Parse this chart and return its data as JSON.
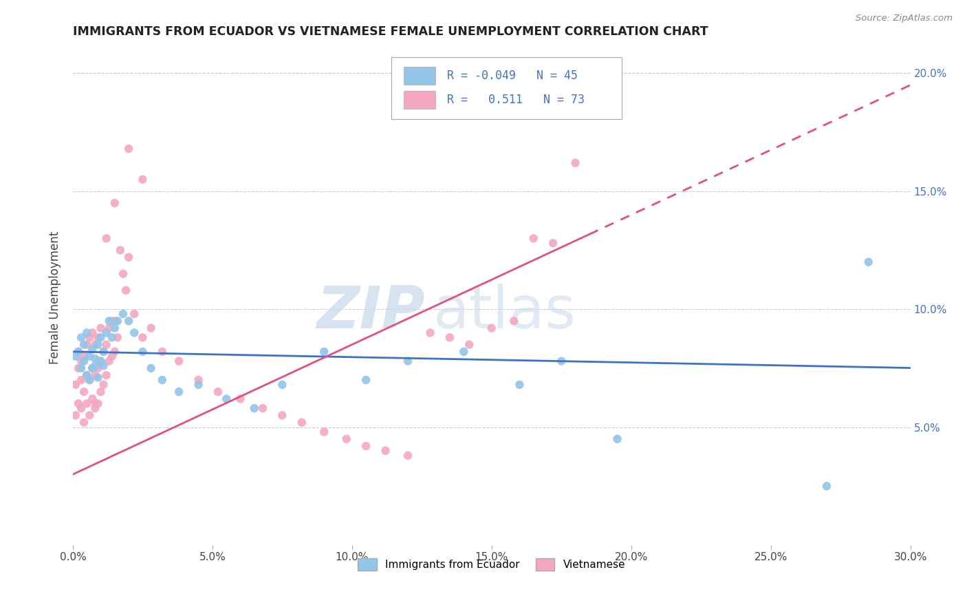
{
  "title": "IMMIGRANTS FROM ECUADOR VS VIETNAMESE FEMALE UNEMPLOYMENT CORRELATION CHART",
  "source": "Source: ZipAtlas.com",
  "ylabel": "Female Unemployment",
  "xlim": [
    0.0,
    0.3
  ],
  "ylim": [
    0.0,
    0.21
  ],
  "xticks": [
    0.0,
    0.05,
    0.1,
    0.15,
    0.2,
    0.25,
    0.3
  ],
  "xtick_labels": [
    "0.0%",
    "5.0%",
    "10.0%",
    "15.0%",
    "20.0%",
    "25.0%",
    "30.0%"
  ],
  "yticks_right": [
    0.05,
    0.1,
    0.15,
    0.2
  ],
  "ytick_labels_right": [
    "5.0%",
    "10.0%",
    "15.0%",
    "20.0%"
  ],
  "blue_color": "#93c5e8",
  "pink_color": "#f4a8bf",
  "blue_line_color": "#3d74c7",
  "pink_line_color": "#e05080",
  "watermark_zip": "ZIP",
  "watermark_atlas": "atlas",
  "background_color": "#ffffff",
  "grid_color": "#cccccc",
  "blue_scatter_x": [
    0.001,
    0.002,
    0.003,
    0.003,
    0.004,
    0.004,
    0.005,
    0.005,
    0.006,
    0.006,
    0.007,
    0.007,
    0.008,
    0.008,
    0.009,
    0.009,
    0.01,
    0.01,
    0.011,
    0.011,
    0.012,
    0.013,
    0.014,
    0.015,
    0.016,
    0.018,
    0.02,
    0.022,
    0.025,
    0.028,
    0.032,
    0.038,
    0.045,
    0.055,
    0.065,
    0.075,
    0.09,
    0.105,
    0.12,
    0.14,
    0.16,
    0.175,
    0.195,
    0.27,
    0.285
  ],
  "blue_scatter_y": [
    0.08,
    0.082,
    0.075,
    0.088,
    0.078,
    0.085,
    0.072,
    0.09,
    0.07,
    0.08,
    0.075,
    0.083,
    0.076,
    0.079,
    0.071,
    0.085,
    0.078,
    0.088,
    0.082,
    0.076,
    0.09,
    0.095,
    0.088,
    0.092,
    0.095,
    0.098,
    0.095,
    0.09,
    0.082,
    0.075,
    0.07,
    0.065,
    0.068,
    0.062,
    0.058,
    0.068,
    0.082,
    0.07,
    0.078,
    0.082,
    0.068,
    0.078,
    0.045,
    0.025,
    0.12
  ],
  "pink_scatter_x": [
    0.001,
    0.001,
    0.002,
    0.002,
    0.002,
    0.003,
    0.003,
    0.003,
    0.004,
    0.004,
    0.004,
    0.005,
    0.005,
    0.005,
    0.006,
    0.006,
    0.006,
    0.007,
    0.007,
    0.007,
    0.008,
    0.008,
    0.008,
    0.009,
    0.009,
    0.009,
    0.01,
    0.01,
    0.01,
    0.011,
    0.011,
    0.012,
    0.012,
    0.013,
    0.013,
    0.014,
    0.014,
    0.015,
    0.015,
    0.016,
    0.017,
    0.018,
    0.019,
    0.02,
    0.022,
    0.025,
    0.028,
    0.032,
    0.038,
    0.045,
    0.052,
    0.06,
    0.068,
    0.075,
    0.082,
    0.09,
    0.098,
    0.105,
    0.112,
    0.12,
    0.128,
    0.135,
    0.142,
    0.15,
    0.158,
    0.165,
    0.172,
    0.18,
    0.015,
    0.025,
    0.008,
    0.012,
    0.02
  ],
  "pink_scatter_y": [
    0.055,
    0.068,
    0.06,
    0.075,
    0.082,
    0.058,
    0.07,
    0.078,
    0.052,
    0.065,
    0.08,
    0.06,
    0.072,
    0.085,
    0.055,
    0.07,
    0.088,
    0.062,
    0.075,
    0.09,
    0.058,
    0.072,
    0.085,
    0.06,
    0.075,
    0.088,
    0.065,
    0.078,
    0.092,
    0.068,
    0.082,
    0.072,
    0.085,
    0.078,
    0.092,
    0.08,
    0.095,
    0.082,
    0.095,
    0.088,
    0.125,
    0.115,
    0.108,
    0.122,
    0.098,
    0.088,
    0.092,
    0.082,
    0.078,
    0.07,
    0.065,
    0.062,
    0.058,
    0.055,
    0.052,
    0.048,
    0.045,
    0.042,
    0.04,
    0.038,
    0.09,
    0.088,
    0.085,
    0.092,
    0.095,
    0.13,
    0.128,
    0.162,
    0.145,
    0.155,
    0.06,
    0.13,
    0.168
  ]
}
